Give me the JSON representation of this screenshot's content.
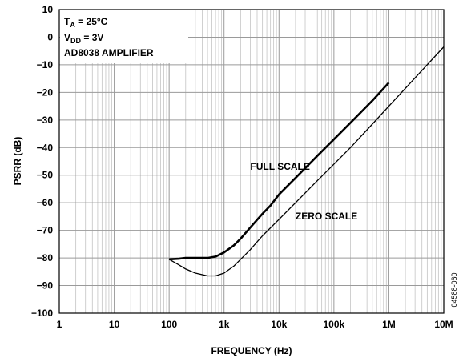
{
  "chart_data": {
    "type": "line",
    "xlabel": "FREQUENCY (Hz)",
    "ylabel": "PSRR (dB)",
    "x_scale": "log",
    "xlim": [
      1,
      10000000
    ],
    "ylim": [
      -100,
      10
    ],
    "grid": true,
    "x_ticks": [
      {
        "value": 1,
        "label": "1"
      },
      {
        "value": 10,
        "label": "10"
      },
      {
        "value": 100,
        "label": "100"
      },
      {
        "value": 1000,
        "label": "1k"
      },
      {
        "value": 10000,
        "label": "10k"
      },
      {
        "value": 100000,
        "label": "100k"
      },
      {
        "value": 1000000,
        "label": "1M"
      },
      {
        "value": 10000000,
        "label": "10M"
      }
    ],
    "y_ticks": [
      {
        "value": 10,
        "label": "10"
      },
      {
        "value": 0,
        "label": "0"
      },
      {
        "value": -10,
        "label": "−10"
      },
      {
        "value": -20,
        "label": "−20"
      },
      {
        "value": -30,
        "label": "−30"
      },
      {
        "value": -40,
        "label": "−40"
      },
      {
        "value": -50,
        "label": "−50"
      },
      {
        "value": -60,
        "label": "−60"
      },
      {
        "value": -70,
        "label": "−70"
      },
      {
        "value": -80,
        "label": "−80"
      },
      {
        "value": -90,
        "label": "−90"
      },
      {
        "value": -100,
        "label": "−100"
      }
    ],
    "conditions": {
      "ta_main": "T",
      "ta_sub": "A",
      "ta_rest": " = 25°C",
      "vdd_main": "V",
      "vdd_sub": "DD",
      "vdd_rest": " = 3V",
      "amp": "AD8038 AMPLIFIER"
    },
    "figure_id": "04588-060",
    "series": [
      {
        "name": "FULL SCALE",
        "color": "#000000",
        "label_at": {
          "x": 3000,
          "y": -48
        },
        "x": [
          100,
          150,
          200,
          300,
          500,
          700,
          1000,
          1500,
          2000,
          3000,
          5000,
          7000,
          10000,
          20000,
          50000,
          100000,
          200000,
          500000,
          1000000
        ],
        "y": [
          -80.5,
          -80.3,
          -80.0,
          -80.0,
          -80.0,
          -79.5,
          -78.0,
          -75.5,
          -73.0,
          -69.0,
          -64.0,
          -61.0,
          -57.0,
          -51.0,
          -43.0,
          -37.0,
          -31.0,
          -23.0,
          -16.5
        ]
      },
      {
        "name": "ZERO SCALE",
        "color": "#000000",
        "label_at": {
          "x": 20000,
          "y": -66
        },
        "x": [
          100,
          150,
          200,
          300,
          500,
          700,
          1000,
          1500,
          2000,
          3000,
          5000,
          10000,
          20000,
          50000,
          100000,
          200000,
          500000,
          1000000,
          10000000
        ],
        "y": [
          -80.5,
          -82.5,
          -84.0,
          -85.5,
          -86.5,
          -86.5,
          -85.5,
          -83.0,
          -80.5,
          -77.0,
          -72.0,
          -66.0,
          -60.0,
          -52.0,
          -46.0,
          -40.0,
          -31.5,
          -25.0,
          -3.5
        ]
      }
    ]
  }
}
